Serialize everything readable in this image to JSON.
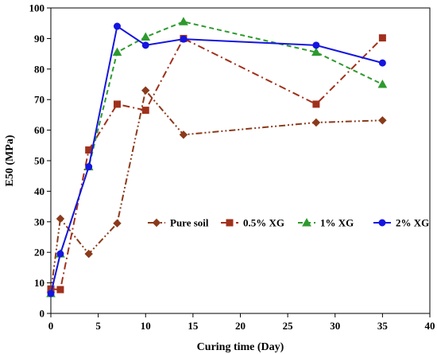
{
  "chart_data": {
    "type": "line",
    "title": "",
    "xlabel": "Curing time (Day)",
    "ylabel": "E50 (MPa)",
    "xlim": [
      0,
      40
    ],
    "ylim": [
      0,
      100
    ],
    "xticks": [
      0,
      5,
      10,
      15,
      20,
      25,
      30,
      35,
      40
    ],
    "yticks": [
      0,
      10,
      20,
      30,
      40,
      50,
      60,
      70,
      80,
      90,
      100
    ],
    "grid": false,
    "legend_position": "lower-right",
    "series": [
      {
        "name": "Pure soil",
        "color": "#8B3A1A",
        "marker": "diamond",
        "line_style": "dash-dot-dot",
        "x": [
          0,
          1,
          4,
          7,
          10,
          14,
          28,
          35
        ],
        "y": [
          7,
          31,
          19.5,
          29.5,
          73,
          58.5,
          62.5,
          63.2
        ]
      },
      {
        "name": "0.5% XG",
        "color": "#A0301C",
        "marker": "square",
        "line_style": "dash-dot",
        "x": [
          0,
          1,
          4,
          7,
          10,
          14,
          28,
          35
        ],
        "y": [
          8,
          7.8,
          53.5,
          68.5,
          66.5,
          90,
          68.5,
          90.2
        ]
      },
      {
        "name": "1% XG",
        "color": "#2E9A2E",
        "marker": "triangle",
        "line_style": "dashed",
        "x": [
          0,
          1,
          4,
          7,
          10,
          14,
          28,
          35
        ],
        "y": [
          6.5,
          19.5,
          48,
          85.5,
          90.5,
          95.5,
          85.5,
          75
        ]
      },
      {
        "name": "2% XG",
        "color": "#1515E0",
        "marker": "circle",
        "line_style": "solid",
        "x": [
          0,
          1,
          4,
          7,
          10,
          14,
          28,
          35
        ],
        "y": [
          6.5,
          19.5,
          48,
          94,
          87.8,
          89.8,
          87.8,
          82
        ]
      }
    ]
  }
}
